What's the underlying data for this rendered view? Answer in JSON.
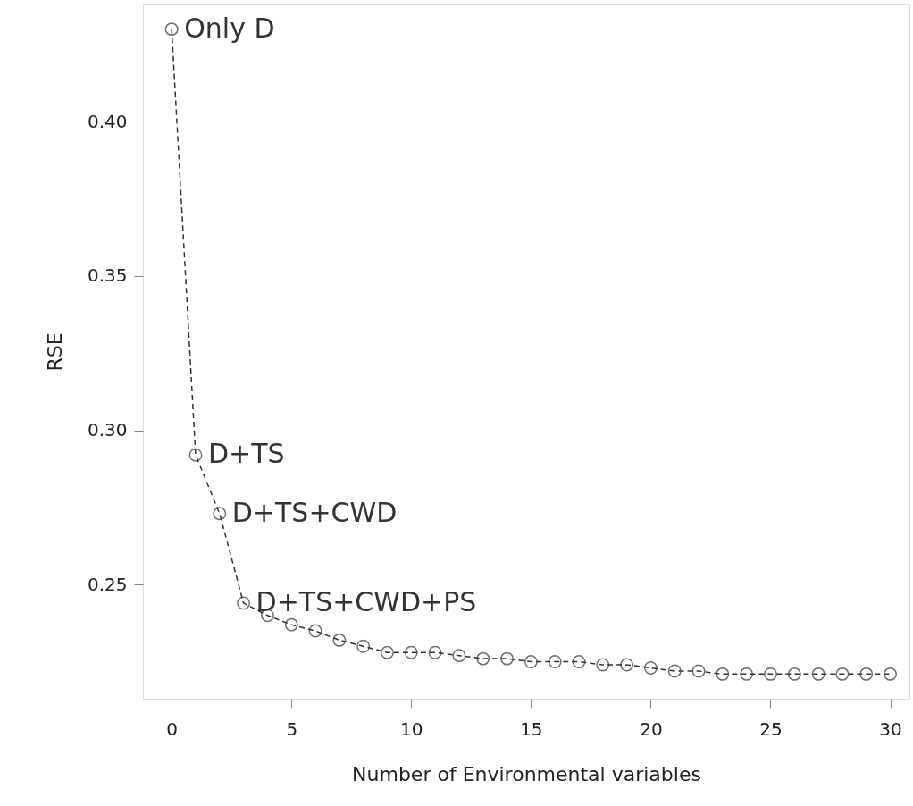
{
  "chart_data": {
    "type": "line",
    "xlabel": "Number of Environmental variables",
    "ylabel": "RSE",
    "x": [
      0,
      1,
      2,
      3,
      4,
      5,
      6,
      7,
      8,
      9,
      10,
      11,
      12,
      13,
      14,
      15,
      16,
      17,
      18,
      19,
      20,
      21,
      22,
      23,
      24,
      25,
      26,
      27,
      28,
      29,
      30
    ],
    "series": [
      {
        "color": "#333333",
        "values": [
          0.43,
          0.292,
          0.273,
          0.244,
          0.24,
          0.237,
          0.235,
          0.232,
          0.23,
          0.228,
          0.228,
          0.228,
          0.227,
          0.226,
          0.226,
          0.225,
          0.225,
          0.225,
          0.224,
          0.224,
          0.223,
          0.222,
          0.222,
          0.221,
          0.221,
          0.221,
          0.221,
          0.221,
          0.221,
          0.221,
          0.221
        ]
      }
    ],
    "xlim": [
      -1.2,
      30.8
    ],
    "xticks": [
      0,
      5,
      10,
      15,
      20,
      25,
      30
    ],
    "ylim": [
      0.213,
      0.438
    ],
    "yticks": [
      0.25,
      {
        "value": 0.3,
        "label": "0.30"
      },
      0.35,
      {
        "value": 0.4,
        "label": "0.40"
      }
    ],
    "annotations": [
      {
        "text": "Only D",
        "x": 0,
        "y": 0.43
      },
      {
        "text": "D+TS",
        "x": 1,
        "y": 0.292
      },
      {
        "text": "D+TS+CWD",
        "x": 2,
        "y": 0.273
      },
      {
        "text": "D+TS+CWD+PS",
        "x": 3,
        "y": 0.244
      }
    ],
    "marker": "circle",
    "line_style": "dashed",
    "grid": false
  }
}
